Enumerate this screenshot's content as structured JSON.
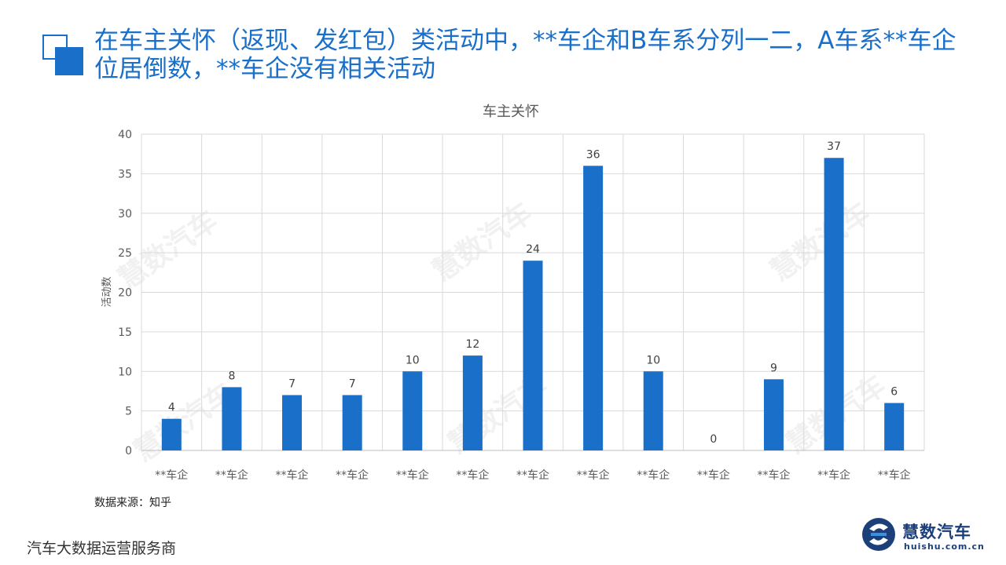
{
  "slide": {
    "title": "在车主关怀（返现、发红包）类活动中，**车企和B车系分列一二，A车系**车企位居倒数，**车企没有相关活动",
    "source": "数据来源：知乎",
    "footer": "汽车大数据运营服务商",
    "logo_name": "慧数汽车",
    "logo_url": "huishu.com.cn",
    "watermark": "慧数汽车",
    "accent_color": "#1a6fc9"
  },
  "chart_data": {
    "type": "bar",
    "title": "车主关怀",
    "ylabel": "活动数",
    "xlabel": "",
    "ylim": [
      0,
      40
    ],
    "yticks": [
      0,
      5,
      10,
      15,
      20,
      25,
      30,
      35,
      40
    ],
    "grid": true,
    "bar_color": "#1a6fc9",
    "categories": [
      "**车企",
      "**车企",
      "**车企",
      "**车企",
      "**车企",
      "**车企",
      "**车企",
      "**车企",
      "**车企",
      "**车企",
      "**车企",
      "**车企",
      "**车企"
    ],
    "values": [
      4,
      8,
      7,
      7,
      10,
      12,
      24,
      36,
      10,
      0,
      9,
      37,
      6
    ]
  }
}
